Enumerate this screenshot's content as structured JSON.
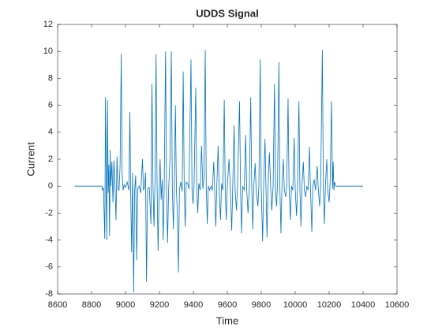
{
  "chart_data": {
    "type": "line",
    "title": "UDDS Signal",
    "xlabel": "Time",
    "ylabel": "Current",
    "color": "#0072bd",
    "x": [
      8700,
      8860,
      8865,
      8870,
      8878,
      8882,
      8886,
      8890,
      8894,
      8898,
      8902,
      8906,
      8910,
      8914,
      8920,
      8926,
      8932,
      8938,
      8944,
      8950,
      8956,
      8962,
      8968,
      8975,
      8980,
      8986,
      8992,
      9000,
      9010,
      9020,
      9026,
      9030,
      9036,
      9042,
      9048,
      9054,
      9060,
      9066,
      9072,
      9080,
      9090,
      9100,
      9106,
      9112,
      9118,
      9124,
      9130,
      9140,
      9150,
      9156,
      9162,
      9168,
      9174,
      9180,
      9186,
      9192,
      9198,
      9204,
      9210,
      9216,
      9222,
      9228,
      9236,
      9242,
      9248,
      9254,
      9262,
      9270,
      9276,
      9282,
      9288,
      9294,
      9300,
      9306,
      9312,
      9318,
      9326,
      9334,
      9340,
      9346,
      9352,
      9358,
      9366,
      9374,
      9386,
      9392,
      9398,
      9404,
      9414,
      9420,
      9426,
      9432,
      9440,
      9448,
      9456,
      9462,
      9470,
      9476,
      9482,
      9488,
      9496,
      9504,
      9512,
      9520,
      9526,
      9532,
      9538,
      9546,
      9552,
      9560,
      9566,
      9574,
      9582,
      9588,
      9594,
      9600,
      9610,
      9618,
      9626,
      9632,
      9640,
      9646,
      9654,
      9660,
      9672,
      9678,
      9684,
      9690,
      9700,
      9708,
      9714,
      9722,
      9730,
      9738,
      9744,
      9750,
      9756,
      9764,
      9770,
      9780,
      9786,
      9794,
      9800,
      9808,
      9814,
      9822,
      9828,
      9834,
      9840,
      9848,
      9856,
      9862,
      9870,
      9878,
      9884,
      9890,
      9896,
      9904,
      9910,
      9916,
      9922,
      9930,
      9936,
      9944,
      9950,
      9958,
      9964,
      9972,
      9978,
      9986,
      9994,
      10000,
      10008,
      10014,
      10022,
      10028,
      10034,
      10040,
      10048,
      10054,
      10062,
      10068,
      10076,
      10084,
      10090,
      10098,
      10104,
      10112,
      10120,
      10130,
      10136,
      10144,
      10150,
      10160,
      10166,
      10172,
      10178,
      10186,
      10192,
      10200,
      10206,
      10214,
      10220,
      10224,
      10228,
      10232,
      10240,
      10400
    ],
    "values": [
      0,
      0,
      -0.3,
      -0.1,
      -3.9,
      6.6,
      0.2,
      -4,
      6.4,
      -0.5,
      1.6,
      -3.7,
      2.7,
      0,
      1.8,
      -1.2,
      1.9,
      0,
      -2.5,
      2.2,
      -0.2,
      -0.3,
      1.5,
      9.8,
      1,
      -0.3,
      0.1,
      -0.1,
      0.3,
      -0.3,
      5.5,
      0,
      -4.9,
      1,
      -7.9,
      -0.3,
      0.8,
      -5.5,
      -0.2,
      0,
      -0.5,
      2,
      -0.3,
      -0.1,
      1,
      -7.1,
      -0.2,
      -0.1,
      -2.8,
      7.6,
      0,
      -3,
      0.5,
      9.8,
      0.2,
      -4.8,
      -0.5,
      2,
      -1,
      0.5,
      -4,
      -0.2,
      10,
      -0.5,
      -4.2,
      -0.3,
      2,
      10,
      -0.2,
      -3.2,
      0,
      6,
      -0.3,
      -2.2,
      -6.4,
      -0.2,
      0.3,
      -0.4,
      8.5,
      0,
      -3,
      0.3,
      0.2,
      -0.2,
      9.4,
      -0.2,
      -1.3,
      0,
      7.3,
      -0.2,
      -2,
      0.2,
      -0.3,
      3,
      -0.2,
      0.5,
      10.1,
      -0.2,
      -2.8,
      0,
      -0.3,
      0,
      -0.3,
      1.8,
      -0.5,
      -3,
      0,
      3,
      -0.2,
      -2.5,
      0.2,
      -0.3,
      6.4,
      -0.5,
      -2.5,
      0,
      2,
      -0.2,
      -3.3,
      0,
      4.5,
      -0.3,
      -1.8,
      0,
      6.3,
      -0.2,
      -3.5,
      0,
      -0.3,
      3.8,
      -0.2,
      -2,
      0,
      6.6,
      0,
      -3.2,
      0,
      1.7,
      -0.3,
      -1.5,
      0,
      9.4,
      -0.2,
      -4.1,
      0,
      3.5,
      -0.2,
      -3.8,
      0,
      2.5,
      -0.2,
      -1.8,
      0,
      7.6,
      -0.3,
      -1.5,
      0.2,
      9.2,
      -0.2,
      -3.5,
      0,
      2,
      -0.3,
      -0.8,
      0,
      6.5,
      -0.2,
      -2.5,
      0,
      -0.3,
      3.6,
      -0.2,
      -2.2,
      0,
      6.3,
      -0.3,
      -3,
      0,
      1.8,
      -0.3,
      -0.8,
      0,
      -0.3,
      2.9,
      -0.2,
      -3.4,
      0,
      0.5,
      -0.3,
      1.5,
      -0.2,
      -1.5,
      0,
      10.1,
      -0.2,
      -2.8,
      0,
      2,
      -0.3,
      -1.2,
      0.3,
      6.3,
      -0.2,
      1.8,
      -0.3,
      0.3,
      0,
      0
    ],
    "xlim": [
      8600,
      10600
    ],
    "xticks": [
      8600,
      8800,
      9000,
      9200,
      9400,
      9600,
      9800,
      10000,
      10200,
      10400,
      10600
    ],
    "ylim": [
      -8,
      12
    ],
    "yticks": [
      -8,
      -6,
      -4,
      -2,
      0,
      2,
      4,
      6,
      8,
      10,
      12
    ]
  }
}
